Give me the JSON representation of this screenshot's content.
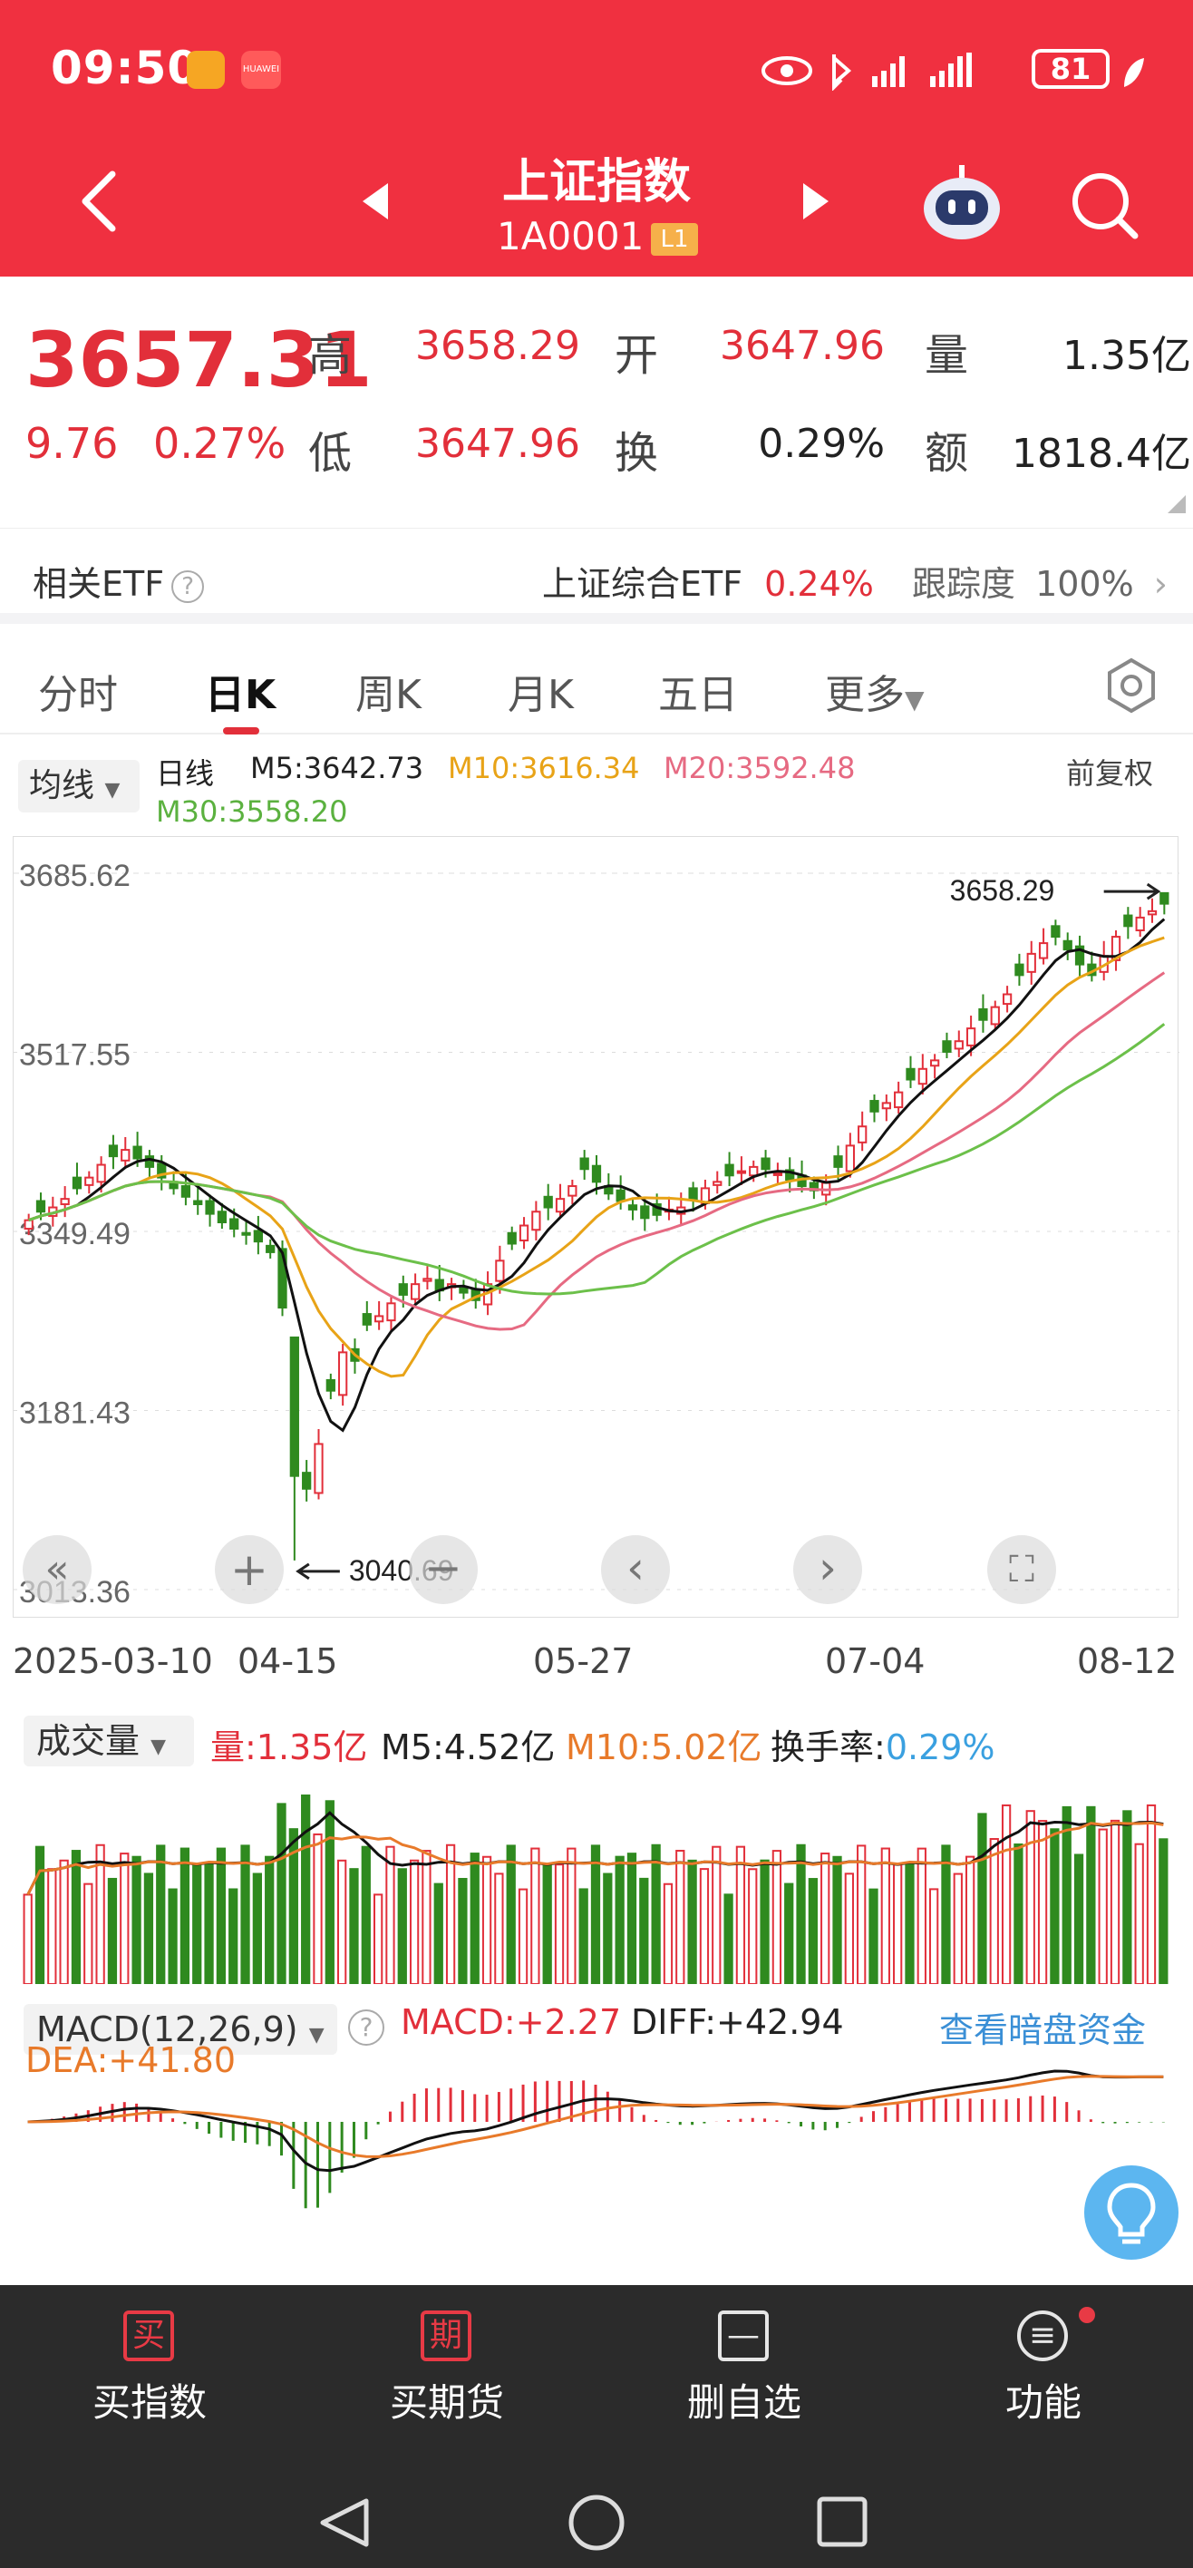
{
  "status_bar": {
    "time": "09:50",
    "battery": "81"
  },
  "header": {
    "title": "上证指数",
    "code": "1A0001",
    "level": "L1"
  },
  "quote": {
    "price": "3657.31",
    "change": "9.76",
    "change_pct": "0.27%",
    "high_label": "高",
    "high": "3658.29",
    "open_label": "开",
    "open": "3647.96",
    "volume_label": "量",
    "volume": "1.35亿",
    "low_label": "低",
    "low": "3647.96",
    "turnover_label": "换",
    "turnover": "0.29%",
    "amount_label": "额",
    "amount": "1818.4亿"
  },
  "etf": {
    "label": "相关ETF",
    "name": "上证综合ETF",
    "pct": "0.24%",
    "track_label": "跟踪度",
    "track": "100%"
  },
  "tabs": [
    {
      "label": "分时"
    },
    {
      "label": "日K"
    },
    {
      "label": "周K"
    },
    {
      "label": "月K"
    },
    {
      "label": "五日"
    },
    {
      "label": "更多"
    }
  ],
  "ma_legend": {
    "button": "均线",
    "line_type": "日线",
    "m5": "M5:3642.73",
    "m10": "M10:3616.34",
    "m20": "M20:3592.48",
    "m30": "M30:3558.20",
    "adjust": "前复权"
  },
  "colors": {
    "up": "#e22f3a",
    "down": "#2f8a1f",
    "ma5": "#111111",
    "ma10": "#e8a317",
    "ma20": "#e66a82",
    "ma30": "#6cc04a",
    "accent": "#f03040"
  },
  "chart_data": {
    "type": "candlestick",
    "y_ticks": [
      "3685.62",
      "3517.55",
      "3349.49",
      "3181.43",
      "3013.36"
    ],
    "ylim": [
      3013.36,
      3685.62
    ],
    "x_tick_labels": [
      "2025-03-10",
      "04-15",
      "05-27",
      "07-04",
      "08-12"
    ],
    "max_marker": "3658.29",
    "min_marker": "3040.69",
    "closes": [
      3360,
      3368,
      3372,
      3380,
      3390,
      3400,
      3412,
      3420,
      3426,
      3418,
      3410,
      3400,
      3390,
      3382,
      3375,
      3366,
      3358,
      3352,
      3347,
      3340,
      3330,
      3278,
      3120,
      3108,
      3150,
      3200,
      3236,
      3228,
      3262,
      3270,
      3282,
      3290,
      3300,
      3305,
      3294,
      3300,
      3292,
      3285,
      3300,
      3322,
      3338,
      3355,
      3368,
      3372,
      3380,
      3392,
      3408,
      3396,
      3385,
      3378,
      3370,
      3362,
      3365,
      3370,
      3372,
      3380,
      3390,
      3396,
      3402,
      3406,
      3410,
      3408,
      3404,
      3398,
      3392,
      3388,
      3395,
      3410,
      3430,
      3448,
      3462,
      3470,
      3480,
      3492,
      3502,
      3510,
      3518,
      3528,
      3540,
      3548,
      3560,
      3572,
      3590,
      3610,
      3620,
      3626,
      3614,
      3600,
      3590,
      3608,
      3626,
      3636,
      3644,
      3650,
      3657
    ]
  },
  "volume": {
    "button": "成交量",
    "vol": "量:1.35亿",
    "m5": "M5:4.52亿",
    "m10": "M10:5.02亿",
    "turnover_label": "换手率:",
    "turnover": "0.29%"
  },
  "macd": {
    "button": "MACD(12,26,9)",
    "macd": "MACD:+2.27",
    "diff": "DIFF:+42.94",
    "dea": "DEA:+41.80",
    "link": "查看暗盘资金"
  },
  "bottom_bar": [
    {
      "icon": "买",
      "label": "买指数"
    },
    {
      "icon": "期",
      "label": "买期货"
    },
    {
      "icon": "—",
      "label": "删自选"
    },
    {
      "icon": "≡",
      "label": "功能"
    }
  ]
}
